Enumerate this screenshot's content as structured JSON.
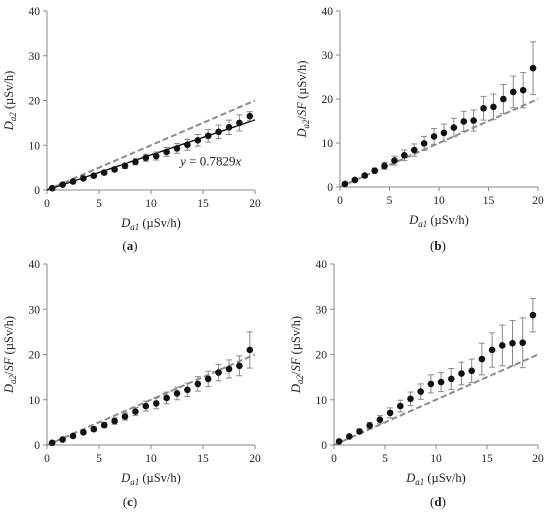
{
  "chart_data": [
    {
      "type": "scatter",
      "panel_label": "(a)",
      "ylabel_main": "D",
      "ylabel_sub": "a2",
      "ylabel_frac": "",
      "ylabel_unit": " (µSv/h)",
      "xlabel_main": "D",
      "xlabel_sub": "a1",
      "xlabel_unit": " (µSv/h)",
      "xlim": [
        0,
        20
      ],
      "ylim": [
        0,
        40
      ],
      "xticks": [
        "0",
        "5",
        "10",
        "15",
        "20"
      ],
      "yticks": [
        "0",
        "10",
        "20",
        "30",
        "40"
      ],
      "reference_line": {
        "style": "dashed",
        "slope": 1
      },
      "fit_line": {
        "slope": 0.7829,
        "equation_y": "y",
        "equation_rest": " = 0.7829",
        "equation_x": "x"
      },
      "x": [
        0.5,
        1.5,
        2.5,
        3.5,
        4.5,
        5.5,
        6.5,
        7.5,
        8.5,
        9.5,
        10.5,
        11.5,
        12.5,
        13.5,
        14.5,
        15.5,
        16.5,
        17.5,
        18.5,
        19.5
      ],
      "y": [
        0.4,
        1.2,
        1.9,
        2.6,
        3.2,
        3.9,
        4.6,
        5.4,
        6.3,
        7.2,
        7.6,
        8.5,
        9.3,
        10.1,
        11.1,
        12.1,
        13.0,
        14.0,
        15.0,
        16.5
      ],
      "yerr": [
        0.1,
        0.2,
        0.3,
        0.3,
        0.4,
        0.5,
        0.5,
        0.6,
        0.7,
        0.8,
        0.9,
        1.0,
        1.1,
        1.2,
        1.3,
        1.4,
        1.5,
        1.6,
        1.8,
        1.0
      ]
    },
    {
      "type": "scatter",
      "panel_label": "(b)",
      "ylabel_main": "D",
      "ylabel_sub": "a2",
      "ylabel_frac": "/SF",
      "ylabel_unit": " (µSv/h)",
      "xlabel_main": "D",
      "xlabel_sub": "a1",
      "xlabel_unit": " (µSv/h)",
      "xlim": [
        0,
        20
      ],
      "ylim": [
        0,
        40
      ],
      "xticks": [
        "0",
        "5",
        "10",
        "15",
        "20"
      ],
      "yticks": [
        "0",
        "10",
        "20",
        "30",
        "40"
      ],
      "reference_line": {
        "style": "dashed",
        "slope": 1
      },
      "x": [
        0.5,
        1.5,
        2.5,
        3.5,
        4.5,
        5.5,
        6.5,
        7.5,
        8.5,
        9.5,
        10.5,
        11.5,
        12.5,
        13.5,
        14.5,
        15.5,
        16.5,
        17.5,
        18.5,
        19.5
      ],
      "y": [
        0.7,
        1.6,
        2.6,
        3.7,
        4.8,
        6.0,
        7.2,
        8.4,
        9.9,
        11.5,
        12.3,
        13.5,
        14.9,
        15.1,
        17.9,
        18.2,
        20.0,
        21.6,
        22.0,
        27.0
      ],
      "yerr": [
        0.2,
        0.3,
        0.4,
        0.6,
        0.8,
        1.0,
        1.2,
        1.4,
        1.6,
        1.8,
        2.0,
        2.1,
        2.3,
        2.4,
        2.7,
        2.9,
        3.3,
        3.6,
        4.0,
        6.0
      ]
    },
    {
      "type": "scatter",
      "panel_label": "(c)",
      "ylabel_main": "D",
      "ylabel_sub": "a2",
      "ylabel_frac": "/SF",
      "ylabel_unit": " (µSv/h)",
      "xlabel_main": "D",
      "xlabel_sub": "a1",
      "xlabel_unit": " (µSv/h)",
      "xlim": [
        0,
        20
      ],
      "ylim": [
        0,
        40
      ],
      "xticks": [
        "0",
        "5",
        "10",
        "15",
        "20"
      ],
      "yticks": [
        "0",
        "10",
        "20",
        "30",
        "40"
      ],
      "reference_line": {
        "style": "dashed",
        "slope": 1
      },
      "x": [
        0.5,
        1.5,
        2.5,
        3.5,
        4.5,
        5.5,
        6.5,
        7.5,
        8.5,
        9.5,
        10.5,
        11.5,
        12.5,
        13.5,
        14.5,
        15.5,
        16.5,
        17.5,
        18.5,
        19.5
      ],
      "y": [
        0.5,
        1.2,
        2.0,
        2.8,
        3.5,
        4.4,
        5.3,
        6.3,
        7.4,
        8.6,
        9.2,
        10.4,
        11.4,
        12.2,
        13.5,
        14.6,
        16.0,
        16.8,
        17.5,
        21.0
      ],
      "yerr": [
        0.1,
        0.2,
        0.3,
        0.4,
        0.5,
        0.6,
        0.7,
        0.8,
        0.9,
        1.1,
        1.2,
        1.3,
        1.4,
        1.5,
        1.6,
        1.7,
        1.8,
        2.0,
        2.2,
        4.0
      ]
    },
    {
      "type": "scatter",
      "panel_label": "(d)",
      "ylabel_main": "D",
      "ylabel_sub": "a2",
      "ylabel_frac": "/SF",
      "ylabel_unit": " (µSv/h)",
      "xlabel_main": "D",
      "xlabel_sub": "a1",
      "xlabel_unit": " (µSv/h)",
      "xlim": [
        0,
        20
      ],
      "ylim": [
        0,
        40
      ],
      "xticks": [
        "0",
        "5",
        "10",
        "15",
        "20"
      ],
      "yticks": [
        "0",
        "10",
        "20",
        "30",
        "40"
      ],
      "reference_line": {
        "style": "dashed",
        "slope": 1
      },
      "x": [
        0.5,
        1.5,
        2.5,
        3.5,
        4.5,
        5.5,
        6.5,
        7.5,
        8.5,
        9.5,
        10.5,
        11.5,
        12.5,
        13.5,
        14.5,
        15.5,
        16.5,
        17.5,
        18.5,
        19.5
      ],
      "y": [
        0.8,
        1.9,
        3.0,
        4.3,
        5.6,
        7.1,
        8.6,
        10.2,
        11.8,
        13.5,
        13.9,
        14.6,
        15.8,
        16.4,
        19.0,
        21.0,
        22.0,
        22.5,
        22.6,
        28.7
      ],
      "yerr": [
        0.2,
        0.3,
        0.5,
        0.7,
        0.9,
        1.1,
        1.3,
        1.5,
        1.7,
        2.0,
        2.1,
        2.3,
        2.5,
        2.6,
        3.5,
        3.8,
        4.5,
        5.0,
        5.5,
        3.7
      ]
    }
  ]
}
